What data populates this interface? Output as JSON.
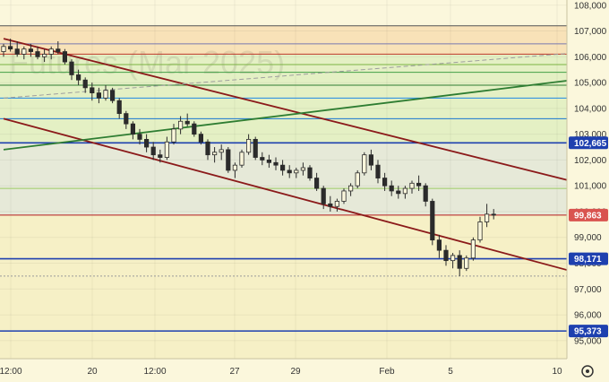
{
  "watermark": {
    "line1": "",
    "line2": "Futures (Mar 2025)"
  },
  "colors": {
    "background": "#fbf7dc",
    "candle": "#2b2b2b",
    "channel": "#8b1a1a",
    "trend_green": "#2e7d32",
    "dashed_gray": "#9e9e9e",
    "badge_blue": "#1e40af",
    "badge_red": "#d9534f",
    "band_orange": "#f8e2b8",
    "band_green": "#e4f0c4",
    "band_blue": "#e6e9d8",
    "band_yellow": "#f6f0c6"
  },
  "chart_data": {
    "type": "candlestick",
    "ylim": [
      94300,
      108200
    ],
    "y_ticks": [
      {
        "value": 108000,
        "label": "108,000"
      },
      {
        "value": 107000,
        "label": "107,000"
      },
      {
        "value": 106000,
        "label": "106,000"
      },
      {
        "value": 105000,
        "label": "105,000"
      },
      {
        "value": 104000,
        "label": "104,000"
      },
      {
        "value": 103000,
        "label": "103,000"
      },
      {
        "value": 102000,
        "label": "102,000"
      },
      {
        "value": 101000,
        "label": "101,000"
      },
      {
        "value": 100000,
        "label": "100,000"
      },
      {
        "value": 99000,
        "label": "99,000"
      },
      {
        "value": 98000,
        "label": "98,000"
      },
      {
        "value": 97000,
        "label": "97,000"
      },
      {
        "value": 96000,
        "label": "96,000"
      },
      {
        "value": 95000,
        "label": "95,000"
      }
    ],
    "x_ticks": [
      "12:00",
      "20",
      "12:00",
      "27",
      "29",
      "Feb",
      "5",
      "10"
    ],
    "bands": [
      {
        "from": 106100,
        "to": 107200,
        "color": "#f8e2b8"
      },
      {
        "from": 102665,
        "to": 106100,
        "color": "#e4f0c4"
      },
      {
        "from": 99863,
        "to": 102665,
        "color": "#e6e9d8"
      },
      {
        "from": 94300,
        "to": 99863,
        "color": "#f6f0c6"
      }
    ],
    "horizontal_levels": [
      {
        "value": 107200,
        "color": "#555555"
      },
      {
        "value": 106500,
        "color": "#7a7ab0"
      },
      {
        "value": 106100,
        "color": "#c0392b"
      },
      {
        "value": 105700,
        "color": "#7cb342"
      },
      {
        "value": 105400,
        "color": "#43a047"
      },
      {
        "value": 104900,
        "color": "#2e7d32"
      },
      {
        "value": 104400,
        "color": "#1e88e5"
      },
      {
        "value": 103600,
        "color": "#1976d2"
      },
      {
        "value": 102665,
        "color": "#1e40af"
      },
      {
        "value": 100900,
        "color": "#9ccc65"
      },
      {
        "value": 99863,
        "color": "#b71c1c"
      },
      {
        "value": 98171,
        "color": "#1e40af"
      },
      {
        "value": 97500,
        "color": "#999999"
      },
      {
        "value": 95373,
        "color": "#1e40af"
      }
    ],
    "price_badges": [
      {
        "value": 102665,
        "label": "102,665",
        "color": "#1e40af"
      },
      {
        "value": 99863,
        "label": "99,863",
        "color": "#d9534f"
      },
      {
        "value": 98171,
        "label": "98,171",
        "color": "#1e40af"
      },
      {
        "value": 95373,
        "label": "95,373",
        "color": "#1e40af"
      }
    ],
    "trend_lines": [
      {
        "name": "channel-upper",
        "x1": 0,
        "y1": 106700,
        "x2": 96,
        "y2": 100350,
        "color": "#8b1a1a",
        "dashed": false
      },
      {
        "name": "channel-lower",
        "x1": 0,
        "y1": 103600,
        "x2": 96,
        "y2": 96800,
        "color": "#8b1a1a",
        "dashed": false
      },
      {
        "name": "green-trend",
        "x1": 0,
        "y1": 102400,
        "x2": 96,
        "y2": 105500,
        "color": "#2e7d32",
        "dashed": false
      },
      {
        "name": "gray-dashed",
        "x1": 0,
        "y1": 104400,
        "x2": 96,
        "y2": 106400,
        "color": "#9e9e9e",
        "dashed": true
      }
    ],
    "candles": [
      [
        106200,
        106500,
        106000,
        106400
      ],
      [
        106400,
        106700,
        106200,
        106300
      ],
      [
        106300,
        106600,
        106000,
        106100
      ],
      [
        106100,
        106400,
        105900,
        106300
      ],
      [
        106300,
        106500,
        106000,
        106200
      ],
      [
        106200,
        106400,
        105900,
        106000
      ],
      [
        106000,
        106300,
        105800,
        106100
      ],
      [
        106100,
        106400,
        105900,
        106300
      ],
      [
        106300,
        106600,
        106100,
        106200
      ],
      [
        106200,
        106300,
        105700,
        105800
      ],
      [
        105800,
        105900,
        105100,
        105300
      ],
      [
        105300,
        105500,
        104900,
        105100
      ],
      [
        105100,
        105200,
        104600,
        104800
      ],
      [
        104800,
        105000,
        104300,
        104600
      ],
      [
        104600,
        104800,
        104200,
        104400
      ],
      [
        104400,
        104900,
        104300,
        104700
      ],
      [
        104700,
        104800,
        104200,
        104300
      ],
      [
        104300,
        104400,
        103600,
        103800
      ],
      [
        103800,
        103900,
        103200,
        103400
      ],
      [
        103400,
        103500,
        102800,
        103000
      ],
      [
        103000,
        103200,
        102600,
        102800
      ],
      [
        102800,
        103000,
        102300,
        102500
      ],
      [
        102500,
        102700,
        102000,
        102200
      ],
      [
        102200,
        102400,
        101900,
        102100
      ],
      [
        102100,
        102900,
        102000,
        102700
      ],
      [
        102700,
        103400,
        102600,
        103200
      ],
      [
        103200,
        103700,
        103000,
        103500
      ],
      [
        103500,
        103800,
        103300,
        103400
      ],
      [
        103400,
        103500,
        102900,
        103000
      ],
      [
        103000,
        103100,
        102600,
        102700
      ],
      [
        102700,
        102800,
        102000,
        102200
      ],
      [
        102200,
        102500,
        101900,
        102300
      ],
      [
        102300,
        102600,
        102000,
        102400
      ],
      [
        102400,
        102500,
        101500,
        101600
      ],
      [
        101600,
        101900,
        101300,
        101800
      ],
      [
        101800,
        102400,
        101700,
        102300
      ],
      [
        102300,
        103000,
        102200,
        102800
      ],
      [
        102800,
        102900,
        102000,
        102100
      ],
      [
        102100,
        102300,
        101800,
        102000
      ],
      [
        102000,
        102200,
        101700,
        101900
      ],
      [
        101900,
        102100,
        101600,
        101800
      ],
      [
        101800,
        102000,
        101400,
        101600
      ],
      [
        101600,
        101800,
        101300,
        101500
      ],
      [
        101500,
        101700,
        101300,
        101600
      ],
      [
        101600,
        101900,
        101400,
        101700
      ],
      [
        101700,
        101800,
        101200,
        101300
      ],
      [
        101300,
        101500,
        100800,
        100900
      ],
      [
        100900,
        101000,
        100100,
        100300
      ],
      [
        100300,
        100600,
        100000,
        100200
      ],
      [
        100200,
        100500,
        100000,
        100400
      ],
      [
        100400,
        100900,
        100300,
        100800
      ],
      [
        100800,
        101100,
        100600,
        101000
      ],
      [
        101000,
        101600,
        100900,
        101500
      ],
      [
        101500,
        102300,
        101400,
        102200
      ],
      [
        102200,
        102400,
        101600,
        101800
      ],
      [
        101800,
        102000,
        101100,
        101300
      ],
      [
        101300,
        101500,
        100800,
        101000
      ],
      [
        101000,
        101200,
        100600,
        100800
      ],
      [
        100800,
        101000,
        100500,
        100700
      ],
      [
        100700,
        101000,
        100500,
        100900
      ],
      [
        100900,
        101200,
        100700,
        101100
      ],
      [
        101100,
        101400,
        100800,
        101000
      ],
      [
        101000,
        101100,
        100200,
        100400
      ],
      [
        100400,
        100500,
        98700,
        98900
      ],
      [
        98900,
        99100,
        98200,
        98500
      ],
      [
        98500,
        98700,
        97900,
        98100
      ],
      [
        98100,
        98400,
        97800,
        98300
      ],
      [
        98300,
        98500,
        97500,
        97800
      ],
      [
        97800,
        98300,
        97700,
        98200
      ],
      [
        98200,
        99000,
        98100,
        98900
      ],
      [
        98900,
        99800,
        98800,
        99600
      ],
      [
        99600,
        100300,
        99400,
        99900
      ],
      [
        99900,
        100100,
        99700,
        99863
      ]
    ]
  }
}
